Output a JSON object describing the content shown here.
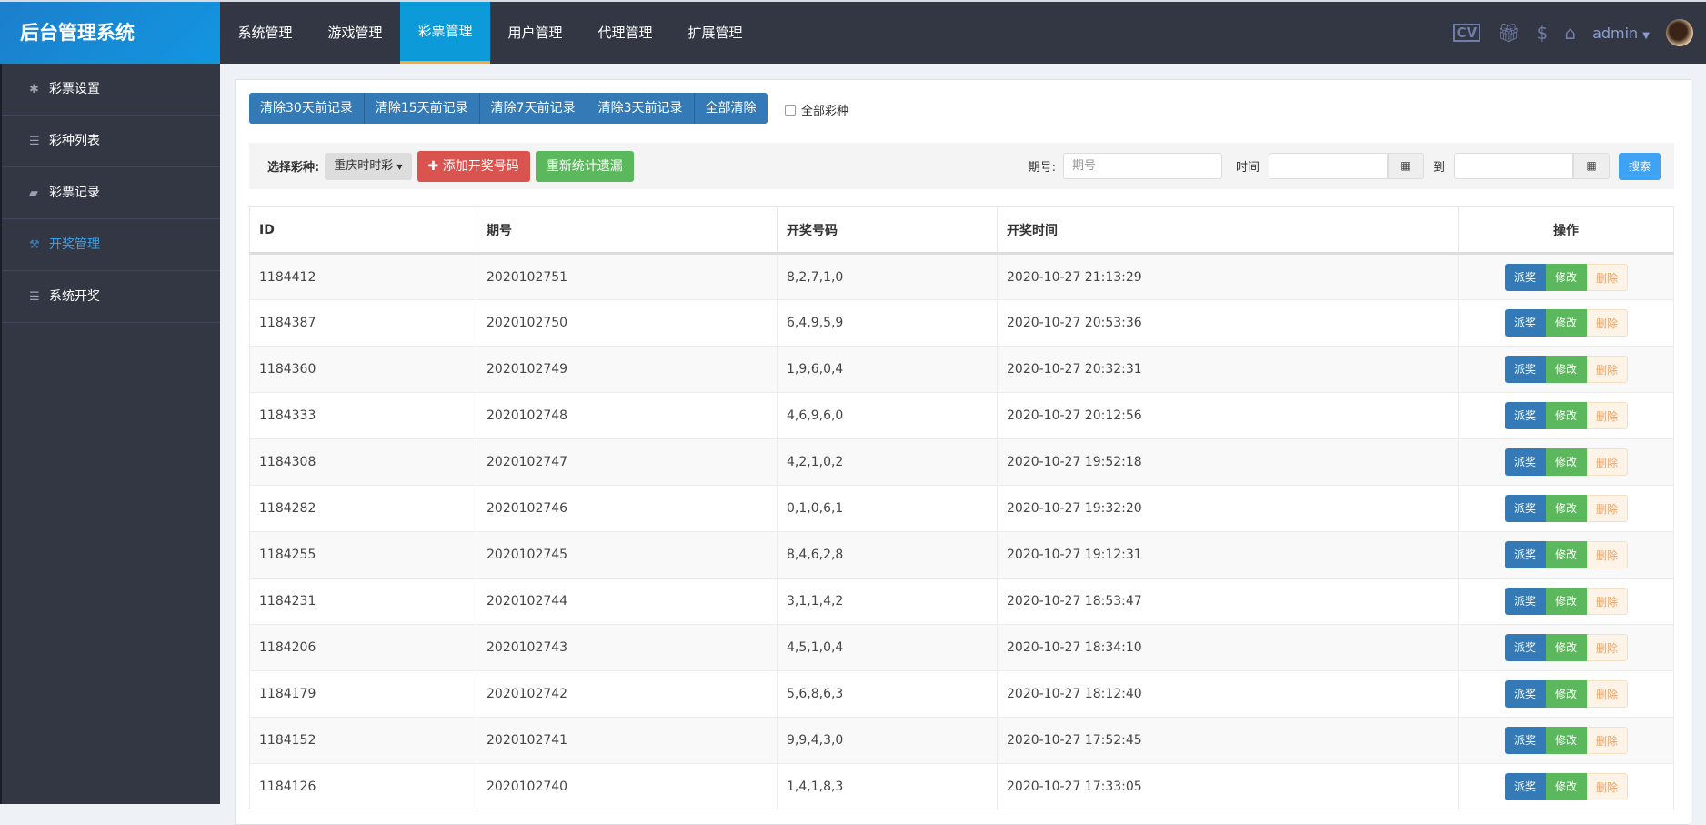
{
  "header": {
    "logo": "后台管理系统",
    "tabs": [
      {
        "label": "系统管理"
      },
      {
        "label": "游戏管理"
      },
      {
        "label": "彩票管理",
        "active": true
      },
      {
        "label": "用户管理"
      },
      {
        "label": "代理管理"
      },
      {
        "label": "扩展管理"
      }
    ],
    "user": "admin",
    "icons": [
      "cv-icon",
      "gift-icon",
      "dollar-icon",
      "home-icon"
    ]
  },
  "sidebar": {
    "items": [
      {
        "label": "彩票设置",
        "icon": "gear-icon"
      },
      {
        "label": "彩种列表",
        "icon": "list-icon"
      },
      {
        "label": "彩票记录",
        "icon": "book-icon"
      },
      {
        "label": "开奖管理",
        "icon": "gavel-icon",
        "active": true
      },
      {
        "label": "系统开奖",
        "icon": "server-icon"
      }
    ]
  },
  "clear_buttons": [
    "清除30天前记录",
    "清除15天前记录",
    "清除7天前记录",
    "清除3天前记录",
    "全部清除"
  ],
  "all_types_label": "全部彩种",
  "toolbar": {
    "select_label": "选择彩种:",
    "select_value": "重庆时时彩",
    "add_label": "添加开奖号码",
    "recount_label": "重新统计遗漏",
    "period_label": "期号:",
    "period_placeholder": "期号",
    "time_label": "时间",
    "to_label": "到",
    "search_label": "搜索"
  },
  "table": {
    "headers": [
      "ID",
      "期号",
      "开奖号码",
      "开奖时间",
      "操作"
    ],
    "actions": {
      "award": "派奖",
      "edit": "修改",
      "delete": "删除"
    },
    "rows": [
      [
        "1184412",
        "2020102751",
        "8,2,7,1,0",
        "2020-10-27 21:13:29"
      ],
      [
        "1184387",
        "2020102750",
        "6,4,9,5,9",
        "2020-10-27 20:53:36"
      ],
      [
        "1184360",
        "2020102749",
        "1,9,6,0,4",
        "2020-10-27 20:32:31"
      ],
      [
        "1184333",
        "2020102748",
        "4,6,9,6,0",
        "2020-10-27 20:12:56"
      ],
      [
        "1184308",
        "2020102747",
        "4,2,1,0,2",
        "2020-10-27 19:52:18"
      ],
      [
        "1184282",
        "2020102746",
        "0,1,0,6,1",
        "2020-10-27 19:32:20"
      ],
      [
        "1184255",
        "2020102745",
        "8,4,6,2,8",
        "2020-10-27 19:12:31"
      ],
      [
        "1184231",
        "2020102744",
        "3,1,1,4,2",
        "2020-10-27 18:53:47"
      ],
      [
        "1184206",
        "2020102743",
        "4,5,1,0,4",
        "2020-10-27 18:34:10"
      ],
      [
        "1184179",
        "2020102742",
        "5,6,8,6,3",
        "2020-10-27 18:12:40"
      ],
      [
        "1184152",
        "2020102741",
        "9,9,4,3,0",
        "2020-10-27 17:52:45"
      ],
      [
        "1184126",
        "2020102740",
        "1,4,1,8,3",
        "2020-10-27 17:33:05"
      ]
    ]
  }
}
